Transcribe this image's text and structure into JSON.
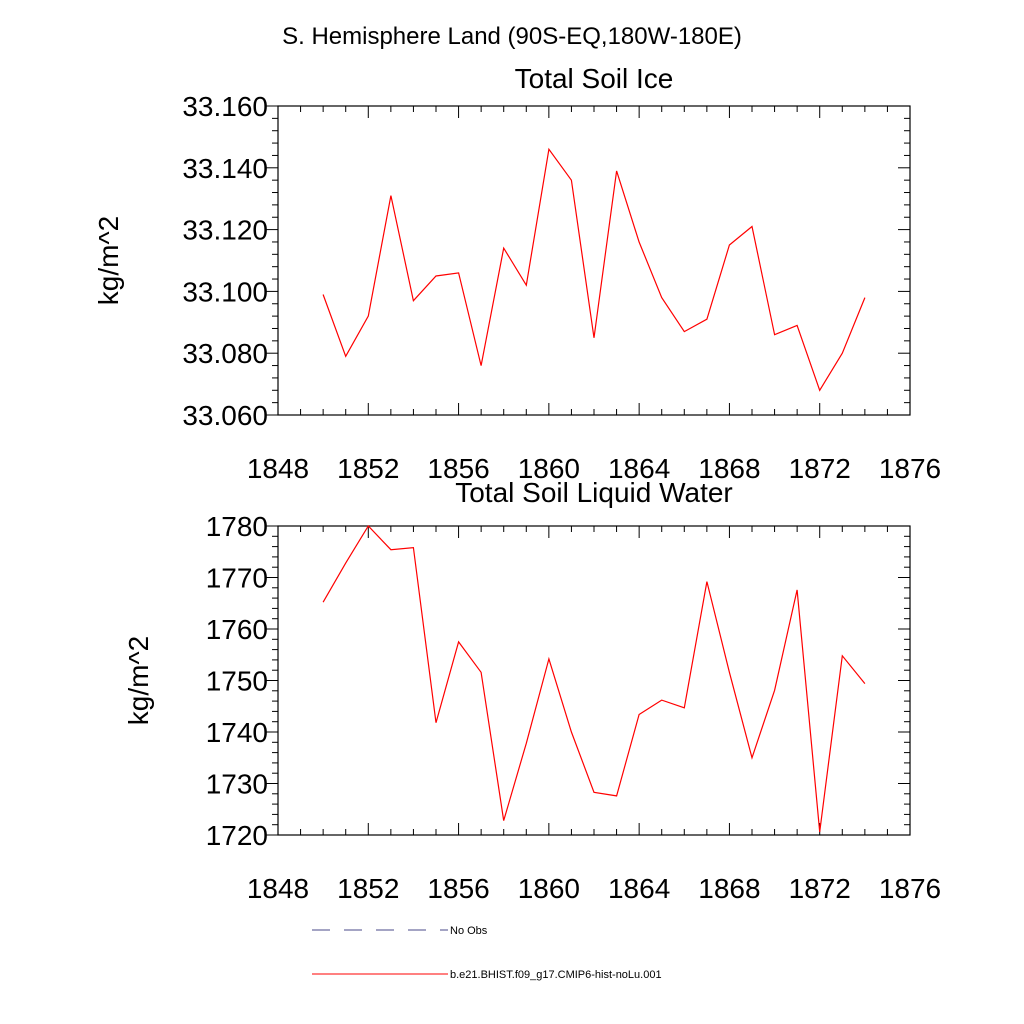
{
  "header": {
    "title": "S. Hemisphere Land (90S-EQ,180W-180E)"
  },
  "chart_data": [
    {
      "type": "line",
      "title": "Total Soil Ice",
      "ylabel": "kg/m^2",
      "xlabel": "",
      "xlim": [
        1848,
        1876
      ],
      "ylim": [
        33.06,
        33.16
      ],
      "xticks": [
        1848,
        1852,
        1856,
        1860,
        1864,
        1868,
        1872,
        1876
      ],
      "yticks": [
        "33.060",
        "33.080",
        "33.100",
        "33.120",
        "33.140",
        "33.160"
      ],
      "ytick_values": [
        33.06,
        33.08,
        33.1,
        33.12,
        33.14,
        33.16
      ],
      "series": [
        {
          "name": "b.e21.BHIST.f09_g17.CMIP6-hist-noLu.001",
          "color": "#ff0000",
          "x": [
            1850,
            1851,
            1852,
            1853,
            1854,
            1855,
            1856,
            1857,
            1858,
            1859,
            1860,
            1861,
            1862,
            1863,
            1864,
            1865,
            1866,
            1867,
            1868,
            1869,
            1870,
            1871,
            1872,
            1873,
            1874
          ],
          "y": [
            33.099,
            33.079,
            33.092,
            33.131,
            33.097,
            33.105,
            33.106,
            33.076,
            33.114,
            33.102,
            33.146,
            33.136,
            33.085,
            33.139,
            33.116,
            33.098,
            33.087,
            33.091,
            33.115,
            33.121,
            33.086,
            33.089,
            33.068,
            33.08,
            33.098
          ]
        }
      ]
    },
    {
      "type": "line",
      "title": "Total Soil Liquid Water",
      "ylabel": "kg/m^2",
      "xlabel": "",
      "xlim": [
        1848,
        1876
      ],
      "ylim": [
        1720,
        1780
      ],
      "xticks": [
        1848,
        1852,
        1856,
        1860,
        1864,
        1868,
        1872,
        1876
      ],
      "yticks": [
        "1720",
        "1730",
        "1740",
        "1750",
        "1760",
        "1770",
        "1780"
      ],
      "ytick_values": [
        1720,
        1730,
        1740,
        1750,
        1760,
        1770,
        1780
      ],
      "series": [
        {
          "name": "b.e21.BHIST.f09_g17.CMIP6-hist-noLu.001",
          "color": "#ff0000",
          "x": [
            1850,
            1851,
            1852,
            1853,
            1854,
            1855,
            1856,
            1857,
            1858,
            1859,
            1860,
            1861,
            1862,
            1863,
            1864,
            1865,
            1866,
            1867,
            1868,
            1869,
            1870,
            1871,
            1872,
            1873,
            1874
          ],
          "y": [
            1765.2,
            1772.8,
            1780.0,
            1775.4,
            1775.8,
            1741.8,
            1757.5,
            1751.6,
            1722.8,
            1737.8,
            1754.2,
            1740.0,
            1728.3,
            1727.6,
            1743.4,
            1746.2,
            1744.7,
            1769.2,
            1751.6,
            1735.0,
            1748.1,
            1767.6,
            1720.6,
            1754.8,
            1749.4
          ]
        }
      ]
    }
  ],
  "legend": {
    "items": [
      {
        "label": "No Obs",
        "style": "dashed",
        "color": "#4a4a8a"
      },
      {
        "label": "b.e21.BHIST.f09_g17.CMIP6-hist-noLu.001",
        "style": "solid",
        "color": "#ff0000"
      }
    ]
  }
}
